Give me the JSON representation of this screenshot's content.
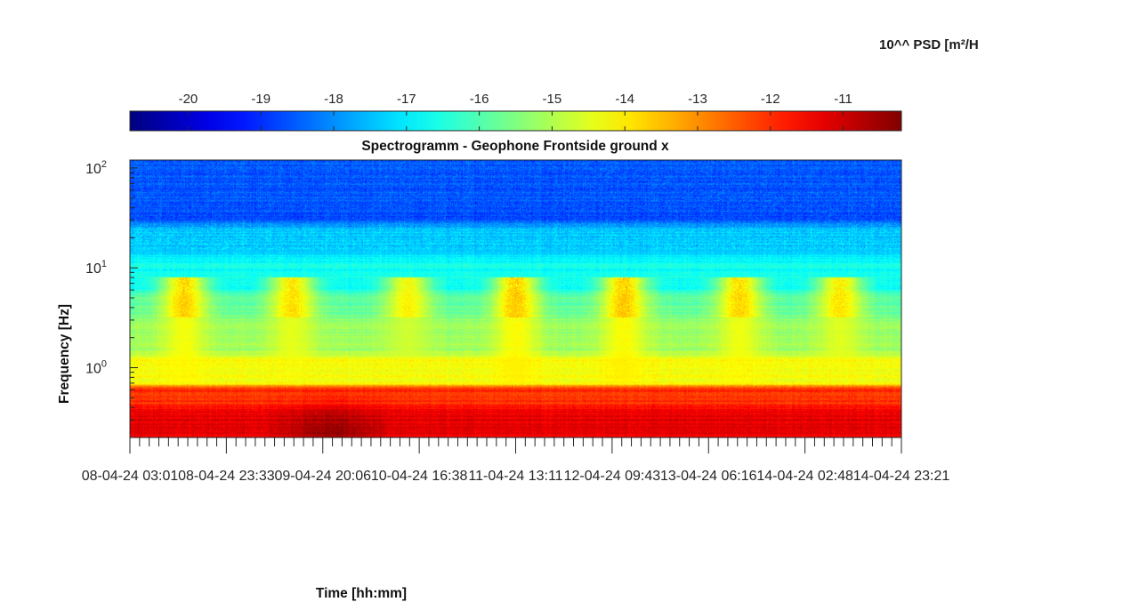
{
  "colorbar": {
    "title": "10^^ PSD [m²/H",
    "ticks": [
      "-20",
      "-19",
      "-18",
      "-17",
      "-16",
      "-15",
      "-14",
      "-13",
      "-12",
      "-11"
    ],
    "tick_values": [
      -20,
      -19,
      -18,
      -17,
      -16,
      -15,
      -14,
      -13,
      -12,
      -11
    ],
    "range": [
      -20.8,
      -10.2
    ],
    "colormap": "jet"
  },
  "chart_data": {
    "type": "heatmap",
    "title": "Spectrogramm - Geophone Frontside ground x",
    "xlabel": "Time [hh:mm]",
    "ylabel": "Frequency [Hz]",
    "y_scale": "log",
    "ylim": [
      0.2,
      120
    ],
    "y_ticks": [
      1,
      10,
      100
    ],
    "y_tick_labels": [
      {
        "base": "10",
        "exp": "0"
      },
      {
        "base": "10",
        "exp": "1"
      },
      {
        "base": "10",
        "exp": "2"
      }
    ],
    "x_tick_labels": [
      "08-04-24  03:01",
      "08-04-24  23:33",
      "09-04-24  20:06",
      "10-04-24  16:38",
      "11-04-24  13:11",
      "12-04-24  09:43",
      "13-04-24  06:16",
      "14-04-24  02:48",
      "14-04-24  23:21"
    ],
    "colorbar_label": "10^^ PSD [m²/H",
    "value_range": [
      -20.8,
      -10.2
    ],
    "bands": [
      {
        "f_min": 0.2,
        "f_max": 0.45,
        "level": -11.3
      },
      {
        "f_min": 0.45,
        "f_max": 0.7,
        "level": -12.0
      },
      {
        "f_min": 0.7,
        "f_max": 1.5,
        "level": -14.3
      },
      {
        "f_min": 1.5,
        "f_max": 3.5,
        "level": -15.2
      },
      {
        "f_min": 3.5,
        "f_max": 6,
        "level": -15.8
      },
      {
        "f_min": 6,
        "f_max": 15,
        "level": -16.7
      },
      {
        "f_min": 15,
        "f_max": 30,
        "level": -17.4
      },
      {
        "f_min": 30,
        "f_max": 120,
        "level": -18.6
      }
    ],
    "activity_bursts": [
      {
        "label": "08-04-24",
        "t": 0.07,
        "peak_level": -14.1
      },
      {
        "label": "09-04-24",
        "t": 0.21,
        "peak_level": -14.3
      },
      {
        "label": "10-04-24",
        "t": 0.36,
        "peak_level": -14.6
      },
      {
        "label": "11-04-24",
        "t": 0.5,
        "peak_level": -14.0
      },
      {
        "label": "12-04-24",
        "t": 0.64,
        "peak_level": -14.0
      },
      {
        "label": "13-04-24",
        "t": 0.79,
        "peak_level": -14.2
      },
      {
        "label": "14-04-24",
        "t": 0.92,
        "peak_level": -14.4
      }
    ],
    "grid": false
  }
}
